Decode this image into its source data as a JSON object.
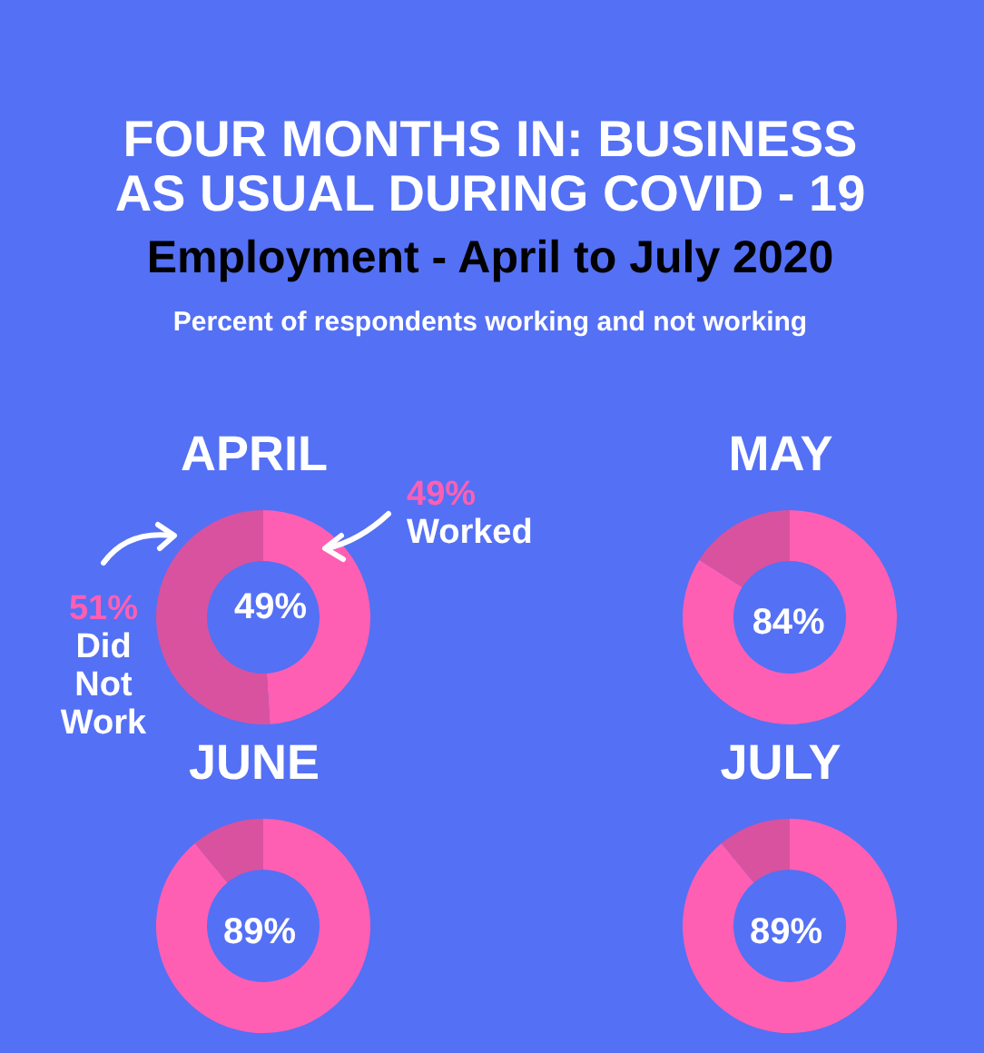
{
  "chart_data": [
    {
      "type": "other",
      "title": "FOUR MONTHS IN: BUSINESS AS USUAL DURING COVID - 19",
      "subtitle": "Employment - April to July 2020",
      "annotations": [
        "Percent of respondents working and not working"
      ]
    },
    {
      "type": "donut",
      "title": "APRIL",
      "categories": [
        null,
        null
      ],
      "values": [
        49,
        51
      ],
      "colors": [
        "#ff5fb3",
        "#d9529f"
      ],
      "value_labels": [
        "49%",
        null
      ],
      "annotations": [
        "49% Worked",
        "51% Did Not Work"
      ]
    },
    {
      "type": "donut",
      "title": "MAY",
      "categories": [
        null,
        null
      ],
      "values": [
        84,
        16
      ],
      "colors": [
        "#ff5fb3",
        "#d9529f"
      ],
      "value_labels": [
        "84%",
        null
      ]
    },
    {
      "type": "donut",
      "title": "JUNE",
      "categories": [
        null,
        null
      ],
      "values": [
        89,
        11
      ],
      "colors": [
        "#ff5fb3",
        "#d9529f"
      ],
      "value_labels": [
        "89%",
        null
      ]
    },
    {
      "type": "donut",
      "title": "JULY",
      "categories": [
        null,
        null
      ],
      "values": [
        89,
        11
      ],
      "colors": [
        "#ff5fb3",
        "#d9529f"
      ],
      "value_labels": [
        "89%",
        null
      ]
    }
  ]
}
